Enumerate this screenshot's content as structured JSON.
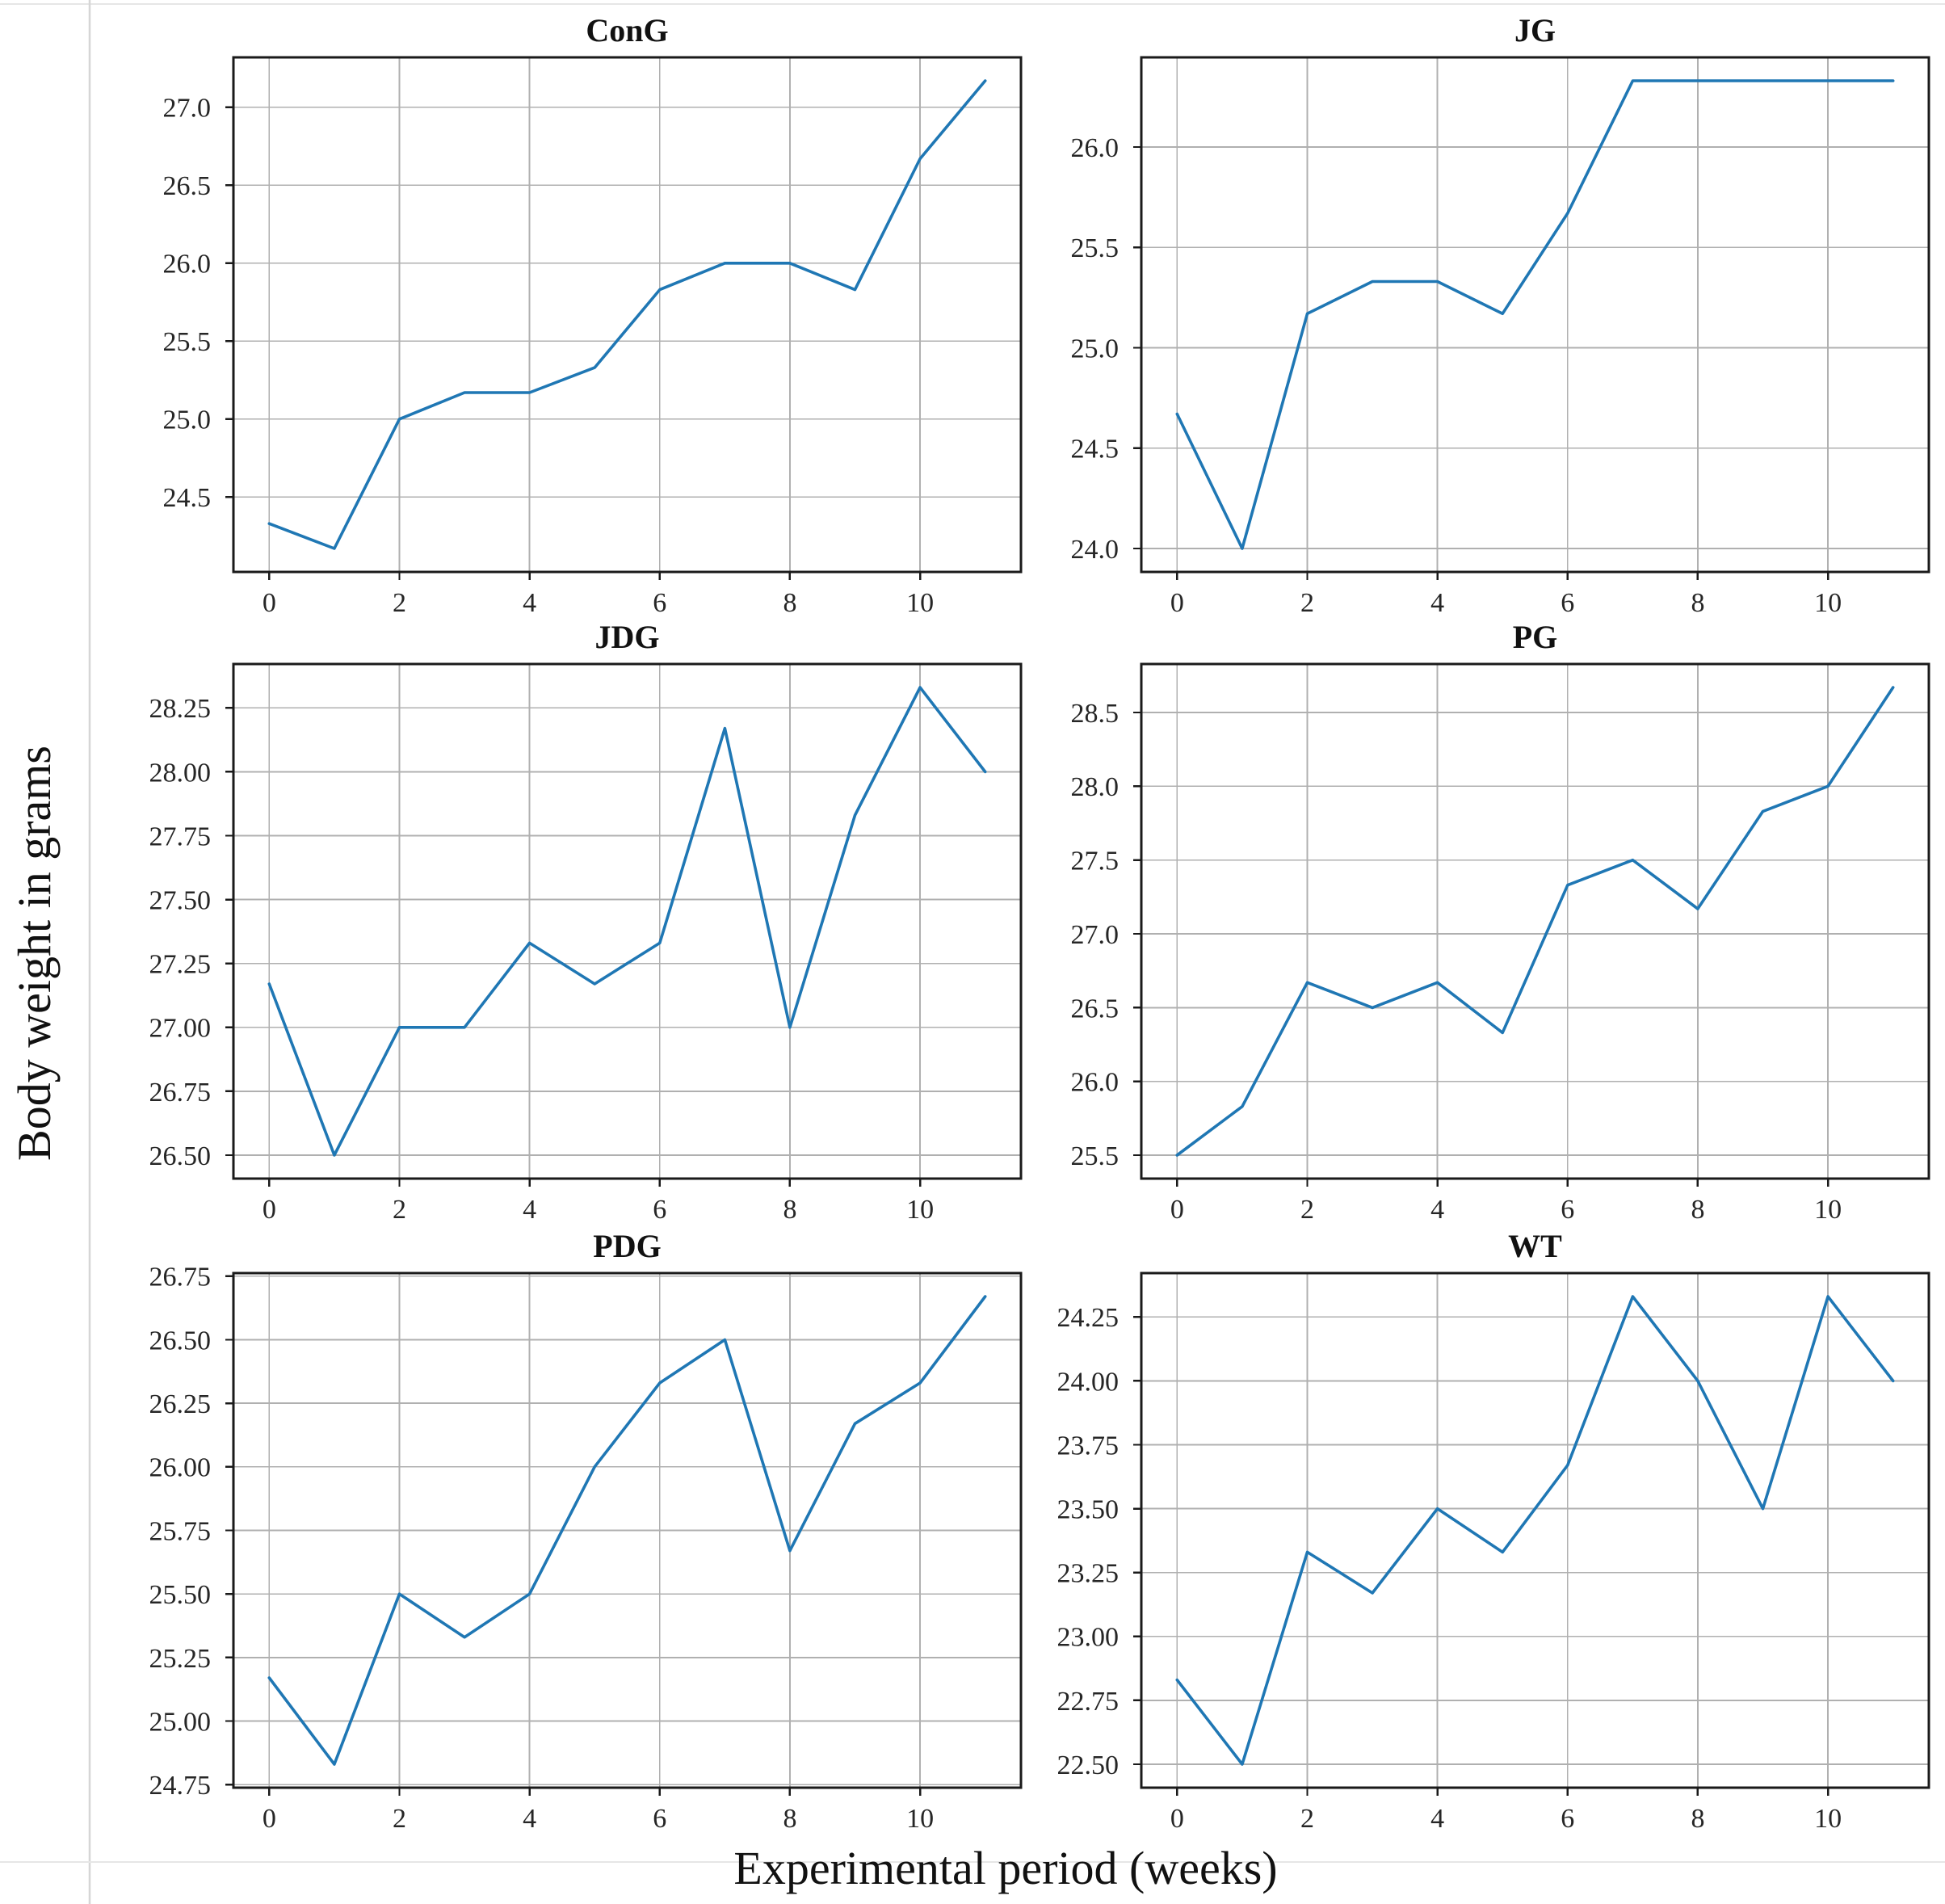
{
  "page": {
    "background": "#ffffff",
    "left_rule_color": "#d6d6d6",
    "hairline_color": "#e6e6e6"
  },
  "figure": {
    "ylabel": "Body weight in grams",
    "xlabel": "Experimental period (weeks)",
    "line_color": "#1f77b4",
    "grid_color": "#b0b0b0",
    "spine_color": "#1a1a1a",
    "tick_color": "#262626",
    "title_color": "#111111",
    "xticks": [
      0,
      2,
      4,
      6,
      8,
      10
    ],
    "xtick_labels": [
      "0",
      "2",
      "4",
      "6",
      "8",
      "10"
    ],
    "xlim": [
      -0.55,
      11.55
    ]
  },
  "chart_data": [
    {
      "type": "line",
      "title": "ConG",
      "x": [
        0,
        1,
        2,
        3,
        4,
        5,
        6,
        7,
        8,
        9,
        10,
        11
      ],
      "values": [
        24.33,
        24.17,
        25.0,
        25.17,
        25.17,
        25.33,
        25.83,
        26.0,
        26.0,
        25.83,
        26.67,
        27.17
      ],
      "yticks": [
        24.5,
        25.0,
        25.5,
        26.0,
        26.5,
        27.0
      ],
      "ytick_labels": [
        "24.5",
        "25.0",
        "25.5",
        "26.0",
        "26.5",
        "27.0"
      ],
      "grid": true,
      "legend": "none"
    },
    {
      "type": "line",
      "title": "JG",
      "x": [
        0,
        1,
        2,
        3,
        4,
        5,
        6,
        7,
        8,
        9,
        10,
        11
      ],
      "values": [
        24.67,
        24.0,
        25.17,
        25.33,
        25.33,
        25.17,
        25.67,
        26.33,
        26.33,
        26.33,
        26.33,
        26.33
      ],
      "yticks": [
        24.0,
        24.5,
        25.0,
        25.5,
        26.0
      ],
      "ytick_labels": [
        "24.0",
        "24.5",
        "25.0",
        "25.5",
        "26.0"
      ],
      "grid": true,
      "legend": "none"
    },
    {
      "type": "line",
      "title": "JDG",
      "x": [
        0,
        1,
        2,
        3,
        4,
        5,
        6,
        7,
        8,
        9,
        10,
        11
      ],
      "values": [
        27.17,
        26.5,
        27.0,
        27.0,
        27.33,
        27.17,
        27.33,
        28.17,
        27.0,
        27.83,
        28.33,
        28.0
      ],
      "yticks": [
        26.5,
        26.75,
        27.0,
        27.25,
        27.5,
        27.75,
        28.0,
        28.25
      ],
      "ytick_labels": [
        "26.50",
        "26.75",
        "27.00",
        "27.25",
        "27.50",
        "27.75",
        "28.00",
        "28.25"
      ],
      "grid": true,
      "legend": "none"
    },
    {
      "type": "line",
      "title": "PG",
      "x": [
        0,
        1,
        2,
        3,
        4,
        5,
        6,
        7,
        8,
        9,
        10,
        11
      ],
      "values": [
        25.5,
        25.83,
        26.67,
        26.5,
        26.67,
        26.33,
        27.33,
        27.5,
        27.17,
        27.83,
        28.0,
        28.67
      ],
      "yticks": [
        25.5,
        26.0,
        26.5,
        27.0,
        27.5,
        28.0,
        28.5
      ],
      "ytick_labels": [
        "25.5",
        "26.0",
        "26.5",
        "27.0",
        "27.5",
        "28.0",
        "28.5"
      ],
      "grid": true,
      "legend": "none"
    },
    {
      "type": "line",
      "title": "PDG",
      "x": [
        0,
        1,
        2,
        3,
        4,
        5,
        6,
        7,
        8,
        9,
        10,
        11
      ],
      "values": [
        25.17,
        24.83,
        25.5,
        25.33,
        25.5,
        26.0,
        26.33,
        26.5,
        25.67,
        26.17,
        26.33,
        26.67
      ],
      "yticks": [
        24.75,
        25.0,
        25.25,
        25.5,
        25.75,
        26.0,
        26.25,
        26.5,
        26.75
      ],
      "ytick_labels": [
        "24.75",
        "25.00",
        "25.25",
        "25.50",
        "25.75",
        "26.00",
        "26.25",
        "26.50",
        "26.75"
      ],
      "grid": true,
      "legend": "none"
    },
    {
      "type": "line",
      "title": "WT",
      "x": [
        0,
        1,
        2,
        3,
        4,
        5,
        6,
        7,
        8,
        9,
        10,
        11
      ],
      "values": [
        22.83,
        22.5,
        23.33,
        23.17,
        23.5,
        23.33,
        23.67,
        24.33,
        24.0,
        23.5,
        24.33,
        24.0
      ],
      "yticks": [
        22.5,
        22.75,
        23.0,
        23.25,
        23.5,
        23.75,
        24.0,
        24.25
      ],
      "ytick_labels": [
        "22.50",
        "22.75",
        "23.00",
        "23.25",
        "23.50",
        "23.75",
        "24.00",
        "24.25"
      ],
      "grid": true,
      "legend": "none"
    }
  ]
}
